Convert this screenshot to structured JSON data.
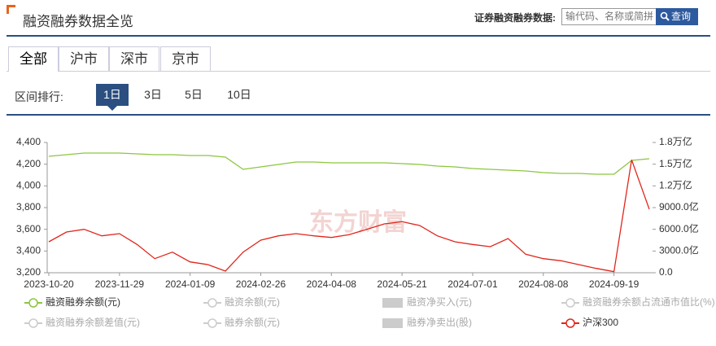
{
  "header": {
    "title": "融资融券数据全览",
    "search_label": "证券融资融券数据:",
    "search_placeholder": "输代码、名称或简拼",
    "search_button": "查询"
  },
  "tabs": [
    "全部",
    "沪市",
    "深市",
    "京市"
  ],
  "range": {
    "label": "区间排行:",
    "options": [
      "1日",
      "3日",
      "5日",
      "10日"
    ]
  },
  "chart_data": {
    "type": "line",
    "watermark": "东方财富",
    "categories": [
      "2023-10-20",
      null,
      null,
      null,
      "2023-11-29",
      null,
      null,
      null,
      "2024-01-09",
      null,
      null,
      null,
      "2024-02-26",
      null,
      null,
      null,
      "2024-04-08",
      null,
      null,
      null,
      "2024-05-21",
      null,
      null,
      null,
      "2024-07-01",
      null,
      null,
      null,
      "2024-08-08",
      null,
      null,
      null,
      "2024-09-19",
      null,
      null
    ],
    "ylim": [
      3200,
      4400
    ],
    "yticks": [
      {
        "value": 3200,
        "label": "3,200"
      },
      {
        "value": 3400,
        "label": "3,400"
      },
      {
        "value": 3600,
        "label": "3,600"
      },
      {
        "value": 3800,
        "label": "3,800"
      },
      {
        "value": 4000,
        "label": "4,000"
      },
      {
        "value": 4200,
        "label": "4,200"
      },
      {
        "value": 4400,
        "label": "4,400"
      }
    ],
    "y2lim": [
      0,
      18000
    ],
    "y2ticks": [
      {
        "value": 0,
        "label": "0.0"
      },
      {
        "value": 3000,
        "label": "3000.0亿"
      },
      {
        "value": 6000,
        "label": "6000.0亿"
      },
      {
        "value": 9000,
        "label": "9000.0亿"
      },
      {
        "value": 12000,
        "label": "1.2万亿"
      },
      {
        "value": 15000,
        "label": "1.5万亿"
      },
      {
        "value": 18000,
        "label": "1.8万亿"
      }
    ],
    "grid": false,
    "series": [
      {
        "name": "融资融券余额(元)",
        "color": "#8cc63f",
        "axis": "y2",
        "values": [
          16090,
          16310,
          16540,
          16540,
          16540,
          16420,
          16310,
          16310,
          16200,
          16200,
          15980,
          14290,
          14625,
          14960,
          15300,
          15300,
          15190,
          15190,
          15190,
          15190,
          15075,
          14960,
          14740,
          14625,
          14400,
          14290,
          14175,
          14060,
          13840,
          13725,
          13725,
          13610,
          13610,
          15525,
          15750
        ]
      },
      {
        "name": "沪深300",
        "color": "#e0261b",
        "values": [
          3485,
          3575,
          3600,
          3540,
          3560,
          3460,
          3330,
          3390,
          3300,
          3275,
          3215,
          3390,
          3500,
          3540,
          3560,
          3540,
          3525,
          3550,
          3600,
          3650,
          3670,
          3635,
          3540,
          3485,
          3460,
          3440,
          3515,
          3370,
          3330,
          3310,
          3275,
          3240,
          3210,
          4240,
          3785
        ]
      }
    ],
    "other_legend": [
      "融资余额(元)",
      "融资净买入(元)",
      "融资融券余额占流通市值比(%)",
      "融资融券余额差值(元)",
      "融券余额(元)",
      "融券净卖出(股)"
    ]
  }
}
